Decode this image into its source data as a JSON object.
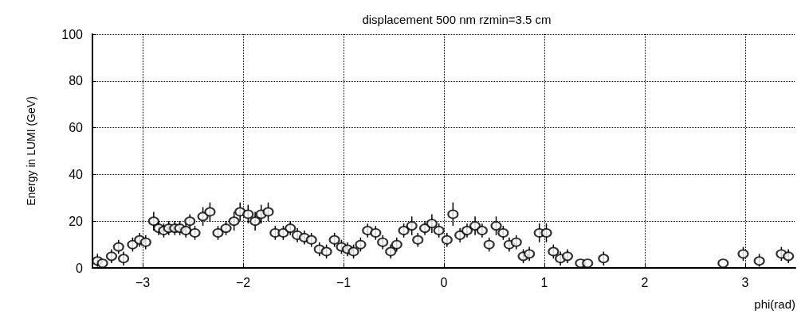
{
  "chart_data": {
    "type": "scatter",
    "title": "displacement 500 nm rzmin=3.5 cm",
    "xlabel": "phi(rad)",
    "ylabel": "Energy in LUMI (GeV)",
    "x": [
      -3.45,
      -3.4,
      -3.31,
      -3.24,
      -3.19,
      -3.1,
      -3.03,
      -2.97,
      -2.89,
      -2.84,
      -2.79,
      -2.74,
      -2.68,
      -2.63,
      -2.57,
      -2.53,
      -2.48,
      -2.4,
      -2.33,
      -2.25,
      -2.17,
      -2.09,
      -2.03,
      -1.95,
      -1.88,
      -1.82,
      -1.75,
      -1.68,
      -1.6,
      -1.53,
      -1.46,
      -1.39,
      -1.32,
      -1.24,
      -1.17,
      -1.09,
      -1.02,
      -0.96,
      -0.9,
      -0.83,
      -0.76,
      -0.68,
      -0.61,
      -0.53,
      -0.47,
      -0.4,
      -0.32,
      -0.26,
      -0.19,
      -0.12,
      -0.05,
      0.03,
      0.09,
      0.16,
      0.23,
      0.31,
      0.38,
      0.45,
      0.52,
      0.59,
      0.65,
      0.72,
      0.79,
      0.85,
      0.95,
      1.02,
      1.09,
      1.16,
      1.23,
      1.36,
      1.43,
      1.59,
      2.78,
      2.98,
      3.14,
      3.36,
      3.43
    ],
    "values": [
      3,
      2,
      5,
      9,
      4,
      10,
      12,
      11,
      20,
      17,
      16,
      17,
      17,
      17,
      16,
      20,
      15,
      22,
      24,
      15,
      17,
      20,
      24,
      23,
      20,
      23,
      24,
      15,
      15,
      17,
      14,
      13,
      12,
      8,
      7,
      12,
      9,
      8,
      7,
      10,
      16,
      15,
      11,
      7,
      10,
      16,
      18,
      12,
      17,
      19,
      16,
      12,
      23,
      14,
      16,
      18,
      16,
      10,
      18,
      15,
      10,
      11,
      5,
      6,
      15,
      15,
      7,
      4,
      5,
      2,
      2,
      4,
      2,
      6,
      3,
      6,
      5
    ],
    "errors": [
      [
        2.5,
        3
      ],
      null,
      3,
      3,
      3,
      3,
      3,
      3,
      4,
      3,
      3,
      3,
      3,
      3,
      3,
      3,
      3,
      4,
      4,
      3,
      3,
      4,
      4,
      4,
      4,
      4,
      4,
      3,
      3,
      3,
      3,
      3,
      3,
      3,
      3,
      3,
      3,
      3,
      3,
      3,
      3,
      3,
      3,
      3,
      3,
      3,
      4,
      3,
      3,
      4,
      3,
      3,
      5,
      3,
      3,
      4,
      3,
      3,
      4,
      3,
      3,
      3,
      3,
      3,
      4,
      4,
      3,
      3,
      3,
      null,
      null,
      3,
      null,
      3,
      [
        2.5,
        3
      ],
      3,
      3
    ],
    "color": "#000000",
    "marker": "circle",
    "grid": true,
    "xlim": [
      -3.5,
      3.5
    ],
    "xticks": [
      -3,
      -2,
      -1,
      0,
      1,
      2,
      3
    ],
    "ylim": [
      0,
      100
    ],
    "yticks": [
      0,
      20,
      40,
      60,
      80,
      100
    ]
  }
}
